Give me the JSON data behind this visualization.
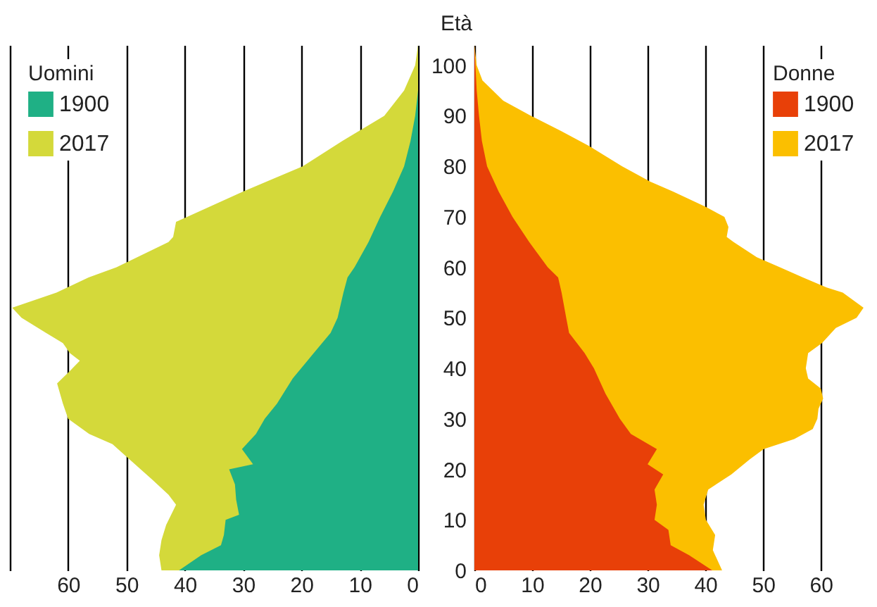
{
  "chart_data": [
    {
      "type": "area",
      "orientation": "horizontal",
      "legend_title": "Uomini",
      "legend": "top left",
      "grid": "x",
      "tick_labels": "x",
      "xlim": [
        70,
        0
      ],
      "xticks": [
        {
          "value": 70,
          "label": null
        },
        60,
        50,
        40,
        30,
        20,
        10,
        0
      ],
      "ylim": [
        0,
        104
      ],
      "series": [
        {
          "name": "1900",
          "color": "#1fb085",
          "x": [
            104,
            95,
            90,
            85,
            80,
            75,
            70,
            65,
            60,
            58,
            55,
            50,
            47,
            43,
            38,
            33,
            30,
            27,
            24,
            21,
            20,
            17,
            14,
            11,
            10,
            7,
            5,
            3,
            0
          ],
          "values": [
            0,
            0,
            0.5,
            1.3,
            2.4,
            4.3,
            6.5,
            8.5,
            10.9,
            12.1,
            12.8,
            13.8,
            15,
            17.9,
            21.5,
            24.2,
            26.3,
            27.8,
            30.2,
            28.3,
            32.4,
            31.4,
            31.2,
            30.7,
            33,
            33.3,
            33.8,
            37.2,
            41
          ]
        },
        {
          "name": "2017",
          "color": "#d4d93a",
          "x": [
            104,
            100,
            95,
            90,
            85,
            80,
            75,
            70,
            69,
            66,
            65,
            60,
            58,
            55,
            52,
            50,
            47,
            45,
            43,
            41.5,
            39.5,
            37,
            33,
            30,
            27,
            25,
            22,
            18,
            15,
            13,
            9,
            6,
            3,
            0
          ],
          "values": [
            0,
            0.5,
            2.4,
            5.8,
            13,
            19.8,
            30,
            39.6,
            41.5,
            42,
            42.8,
            51.7,
            56.5,
            62,
            69.6,
            68,
            63.8,
            60.9,
            59.7,
            58,
            59.7,
            61.9,
            60.9,
            60,
            56.4,
            52.4,
            49.5,
            45.6,
            42.8,
            41.5,
            43.2,
            44,
            44.4,
            44
          ]
        }
      ]
    },
    {
      "type": "area",
      "orientation": "horizontal",
      "legend_title": "Donne",
      "legend": "top right",
      "grid": "x",
      "ylabel": "Età",
      "xlim": [
        0,
        69
      ],
      "xticks": [
        0,
        10,
        20,
        30,
        40,
        50,
        60
      ],
      "ylim": [
        0,
        104
      ],
      "yticks": [
        0,
        10,
        20,
        30,
        40,
        50,
        60,
        70,
        80,
        90,
        100
      ],
      "series": [
        {
          "name": "1900",
          "color": "#e84008",
          "x": [
            104,
            95,
            90,
            85,
            80,
            75,
            70,
            65,
            60,
            58,
            55,
            50,
            47,
            43,
            40,
            35,
            30,
            27,
            24,
            21,
            19,
            16,
            13,
            10,
            8,
            5,
            3,
            0
          ],
          "values": [
            0,
            0.4,
            0.8,
            1.3,
            2.2,
            4.2,
            6.6,
            9.5,
            12.7,
            14.5,
            15.1,
            15.9,
            16.4,
            19.1,
            20.7,
            22.7,
            25.2,
            27.1,
            31.6,
            30,
            32.7,
            31.2,
            31.6,
            31.2,
            33.6,
            34,
            37.2,
            41.2
          ]
        },
        {
          "name": "2017",
          "color": "#fbbf00",
          "x": [
            104,
            100,
            97,
            93,
            90,
            87,
            84,
            80,
            77,
            75,
            72,
            70,
            68,
            66,
            65,
            62,
            60,
            58,
            56,
            55,
            52,
            50,
            48,
            45,
            43,
            40,
            38,
            36,
            34,
            32,
            30,
            28,
            26,
            24,
            22,
            19,
            16,
            13,
            10,
            7,
            4,
            1,
            0
          ],
          "values": [
            0,
            0.4,
            1.4,
            5,
            9.8,
            15,
            19.9,
            25.6,
            30.4,
            34.4,
            40,
            43.3,
            44,
            43.7,
            44.9,
            48.9,
            52.9,
            56.9,
            61,
            63.8,
            67.4,
            66.2,
            62.6,
            60.2,
            57.8,
            57.4,
            57.8,
            60,
            60.4,
            59.6,
            59.4,
            58.6,
            55.4,
            50.1,
            47.7,
            44.5,
            40.5,
            39.7,
            40.1,
            41.7,
            41.3,
            42.5,
            42.9
          ]
        }
      ]
    }
  ]
}
